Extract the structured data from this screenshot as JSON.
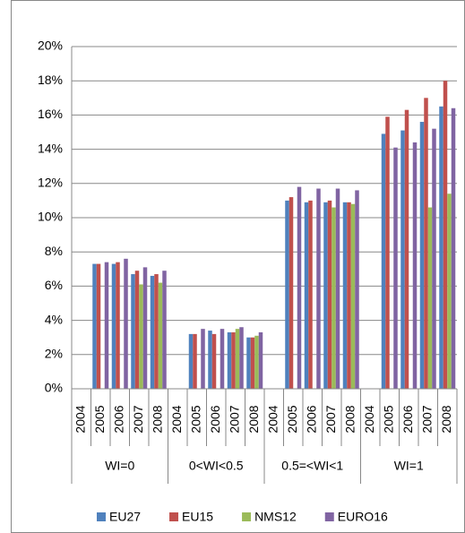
{
  "chart_data": {
    "type": "bar",
    "categories": [
      "2004",
      "2005",
      "2006",
      "2007",
      "2008",
      "2004",
      "2005",
      "2006",
      "2007",
      "2008",
      "2004",
      "2005",
      "2006",
      "2007",
      "2008",
      "2004",
      "2005",
      "2006",
      "2007",
      "2008"
    ],
    "groups": [
      "WI=0",
      "0<WI<0.5",
      "0.5=<WI<1",
      "WI=1"
    ],
    "series": [
      {
        "name": "EU27",
        "color": "#4f81bd",
        "values": [
          null,
          7.3,
          7.3,
          6.7,
          6.6,
          null,
          3.2,
          3.4,
          3.3,
          3.0,
          null,
          11.0,
          10.9,
          10.9,
          10.9,
          null,
          14.9,
          15.1,
          15.6,
          16.5
        ]
      },
      {
        "name": "EU15",
        "color": "#c0504d",
        "values": [
          null,
          7.3,
          7.4,
          6.9,
          6.7,
          null,
          3.2,
          3.2,
          3.3,
          3.0,
          null,
          11.2,
          11.0,
          11.0,
          10.9,
          null,
          15.9,
          16.3,
          17.0,
          18.0
        ]
      },
      {
        "name": "NMS12",
        "color": "#9bbb59",
        "values": [
          null,
          null,
          null,
          6.1,
          6.2,
          null,
          null,
          null,
          3.5,
          3.1,
          null,
          null,
          null,
          10.6,
          10.8,
          null,
          null,
          null,
          10.6,
          11.4
        ]
      },
      {
        "name": "EURO16",
        "color": "#8064a2",
        "values": [
          null,
          7.4,
          7.6,
          7.1,
          6.9,
          null,
          3.5,
          3.5,
          3.6,
          3.3,
          null,
          11.8,
          11.7,
          11.7,
          11.6,
          null,
          14.1,
          14.4,
          15.2,
          16.4
        ]
      }
    ],
    "ylim": [
      0,
      20
    ],
    "yticks": [
      {
        "value": 0,
        "label": "0%"
      },
      {
        "value": 2,
        "label": "2%"
      },
      {
        "value": 4,
        "label": "4%"
      },
      {
        "value": 6,
        "label": "6%"
      },
      {
        "value": 8,
        "label": "8%"
      },
      {
        "value": 10,
        "label": "10%"
      },
      {
        "value": 12,
        "label": "12%"
      },
      {
        "value": 14,
        "label": "14%"
      },
      {
        "value": 16,
        "label": "16%"
      },
      {
        "value": 18,
        "label": "18%"
      },
      {
        "value": 20,
        "label": "20%"
      }
    ],
    "grid": true,
    "legend": "bottom"
  }
}
